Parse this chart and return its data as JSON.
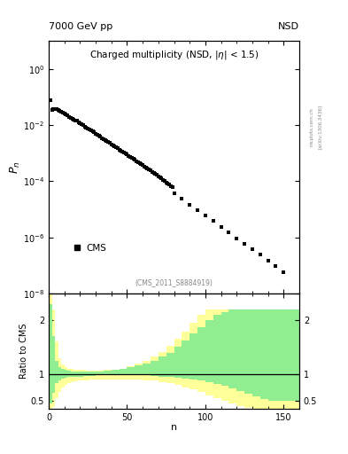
{
  "title_top_left": "7000 GeV pp",
  "title_top_right": "NSD",
  "main_title": "Charged multiplicity (NSD, |\\eta| < 1.5)",
  "ylabel_main": "$P_n$",
  "ylabel_ratio": "Ratio to CMS",
  "xlabel": "n",
  "watermark": "(CMS_2011_S8884919)",
  "arxiv_text": "[arXiv:1306.3436]",
  "mcplots_text": "mcplots.cern.ch",
  "legend_label": "CMS",
  "ratio_ylim": [
    0.35,
    2.5
  ],
  "xlim": [
    0,
    160
  ],
  "data_x": [
    1,
    2,
    3,
    4,
    5,
    6,
    7,
    8,
    9,
    10,
    11,
    12,
    13,
    14,
    15,
    16,
    17,
    18,
    19,
    20,
    21,
    22,
    23,
    24,
    25,
    26,
    27,
    28,
    29,
    30,
    31,
    32,
    33,
    34,
    35,
    36,
    37,
    38,
    39,
    40,
    41,
    42,
    43,
    44,
    45,
    46,
    47,
    48,
    49,
    50,
    51,
    52,
    53,
    54,
    55,
    56,
    57,
    58,
    59,
    60,
    61,
    62,
    63,
    64,
    65,
    66,
    67,
    68,
    69,
    70,
    71,
    72,
    73,
    74,
    75,
    76,
    77,
    78,
    79,
    80,
    85,
    90,
    95,
    100,
    105,
    110,
    115,
    120,
    125,
    130,
    135,
    140,
    145,
    150
  ],
  "data_y": [
    0.08,
    0.035,
    0.038,
    0.038,
    0.036,
    0.034,
    0.032,
    0.03,
    0.028,
    0.026,
    0.024,
    0.022,
    0.02,
    0.018,
    0.017,
    0.016,
    0.015,
    0.014,
    0.013,
    0.012,
    0.011,
    0.01,
    0.009,
    0.008,
    0.0075,
    0.007,
    0.0065,
    0.006,
    0.0055,
    0.005,
    0.0046,
    0.0042,
    0.0038,
    0.0035,
    0.0032,
    0.0029,
    0.0027,
    0.0025,
    0.0023,
    0.0021,
    0.0019,
    0.00175,
    0.0016,
    0.00148,
    0.00136,
    0.00125,
    0.00115,
    0.00106,
    0.00097,
    0.00089,
    0.00082,
    0.00075,
    0.00069,
    0.00063,
    0.00058,
    0.00053,
    0.00049,
    0.00045,
    0.00041,
    0.00037,
    0.00034,
    0.00031,
    0.00029,
    0.00026,
    0.00024,
    0.00022,
    0.0002,
    0.000183,
    0.000167,
    0.000152,
    0.000138,
    0.000125,
    0.000113,
    0.000102,
    9.2e-05,
    8.3e-05,
    7.5e-05,
    6.8e-05,
    6.1e-05,
    3.8e-05,
    2.4e-05,
    1.5e-05,
    9.5e-06,
    6e-06,
    3.8e-06,
    2.4e-06,
    1.5e-06,
    9.5e-07,
    6e-07,
    3.8e-07,
    2.4e-07,
    1.5e-07,
    9.5e-08,
    6e-08
  ],
  "green_color": "#90EE90",
  "yellow_color": "#FFFF99",
  "ratio_n": [
    0,
    2,
    4,
    6,
    8,
    10,
    12,
    14,
    16,
    18,
    20,
    22,
    24,
    26,
    28,
    30,
    35,
    40,
    45,
    50,
    55,
    60,
    65,
    70,
    75,
    80,
    85,
    90,
    95,
    100,
    105,
    110,
    115,
    120,
    125,
    130,
    135,
    140,
    145,
    150,
    155,
    160
  ],
  "green_upper": [
    2.3,
    1.7,
    1.25,
    1.12,
    1.09,
    1.07,
    1.06,
    1.05,
    1.05,
    1.05,
    1.05,
    1.05,
    1.05,
    1.05,
    1.05,
    1.05,
    1.06,
    1.07,
    1.09,
    1.12,
    1.16,
    1.2,
    1.25,
    1.32,
    1.4,
    1.5,
    1.62,
    1.75,
    1.88,
    2.0,
    2.1,
    2.15,
    2.2,
    2.2,
    2.2,
    2.2,
    2.2,
    2.2,
    2.2,
    2.2,
    2.2,
    2.2
  ],
  "green_lower": [
    0.45,
    0.65,
    0.82,
    0.88,
    0.91,
    0.93,
    0.94,
    0.95,
    0.95,
    0.95,
    0.95,
    0.96,
    0.96,
    0.96,
    0.96,
    0.97,
    0.97,
    0.97,
    0.97,
    0.97,
    0.97,
    0.97,
    0.96,
    0.95,
    0.94,
    0.93,
    0.91,
    0.89,
    0.87,
    0.84,
    0.81,
    0.77,
    0.73,
    0.68,
    0.63,
    0.58,
    0.53,
    0.5,
    0.5,
    0.5,
    0.5,
    0.5
  ],
  "yellow_upper": [
    2.5,
    2.2,
    1.6,
    1.3,
    1.18,
    1.13,
    1.1,
    1.09,
    1.08,
    1.07,
    1.07,
    1.07,
    1.06,
    1.06,
    1.06,
    1.06,
    1.07,
    1.08,
    1.1,
    1.14,
    1.19,
    1.25,
    1.32,
    1.41,
    1.52,
    1.65,
    1.79,
    1.95,
    2.1,
    2.2,
    2.2,
    2.2,
    2.2,
    2.2,
    2.2,
    2.2,
    2.2,
    2.2,
    2.2,
    2.2,
    2.2,
    2.2
  ],
  "yellow_lower": [
    0.28,
    0.38,
    0.55,
    0.67,
    0.75,
    0.8,
    0.83,
    0.85,
    0.86,
    0.87,
    0.87,
    0.88,
    0.88,
    0.89,
    0.89,
    0.89,
    0.9,
    0.9,
    0.9,
    0.89,
    0.89,
    0.88,
    0.87,
    0.85,
    0.82,
    0.79,
    0.75,
    0.71,
    0.66,
    0.6,
    0.55,
    0.49,
    0.44,
    0.4,
    0.37,
    0.35,
    0.35,
    0.35,
    0.35,
    0.35,
    0.35,
    0.35
  ]
}
